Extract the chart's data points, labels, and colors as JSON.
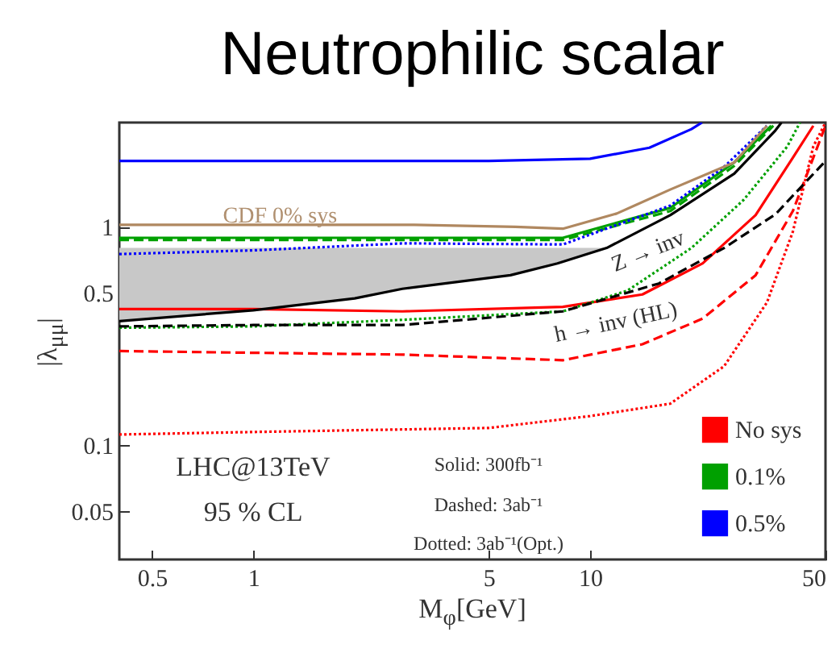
{
  "chart_data": {
    "type": "line",
    "title": "Neutrophilic scalar",
    "xlabel": "M$_{φ}$[GeV]",
    "ylabel": "|λ$_{μμ}$|",
    "log": "xy",
    "xlim": [
      0.4,
      50
    ],
    "ylim": [
      0.03,
      3
    ],
    "xticks": [
      0.5,
      1,
      5,
      10,
      50
    ],
    "yticks": [
      0.05,
      0.1,
      0.5,
      1
    ],
    "grid": false,
    "legend": "bottom right",
    "annotations": [
      "LHC@13TeV",
      "95 % CL",
      "Solid: 300fb⁻¹",
      "Dashed: 3ab⁻¹",
      "Dotted: 3ab⁻¹(Opt.)",
      {
        "text": "CDF 0% sys",
        "x": 1.2,
        "y": 1.12
      },
      "Z → inv",
      "h → inv (HL)"
    ],
    "series": [
      {
        "name": "No sys",
        "color": "#ff0000",
        "line_style": "solid",
        "x": [
          0.4,
          1,
          2.77,
          8.3,
          14.3,
          21.6,
          31,
          40,
          46
        ],
        "values": [
          0.42,
          0.42,
          0.41,
          0.43,
          0.49,
          0.68,
          1.13,
          2.07,
          2.9
        ]
      },
      {
        "color": "#ff0000",
        "line_style": "dashed",
        "x": [
          0.4,
          1,
          2.77,
          8.3,
          14.3,
          21.6,
          31,
          40,
          46,
          50
        ],
        "values": [
          0.27,
          0.265,
          0.26,
          0.245,
          0.29,
          0.38,
          0.6,
          1.18,
          2.07,
          2.9
        ]
      },
      {
        "color": "#ff0000",
        "line_style": "dotted",
        "x": [
          0.4,
          1,
          5,
          10,
          17.3,
          25,
          33.5,
          40,
          46,
          50
        ],
        "values": [
          0.112,
          0.115,
          0.12,
          0.136,
          0.155,
          0.23,
          0.45,
          0.95,
          2.33,
          3
        ]
      },
      {
        "name": "0.1%",
        "color": "#00a000",
        "line_style": "solid",
        "x": [
          0.4,
          1,
          3,
          8.3,
          17.3,
          26.8,
          34.5
        ],
        "values": [
          0.89,
          0.89,
          0.89,
          0.89,
          1.22,
          1.97,
          2.9
        ]
      },
      {
        "color": "#00a000",
        "line_style": "dashed",
        "x": [
          0.4,
          1,
          3,
          8.3,
          17.3,
          26.8,
          35
        ],
        "values": [
          0.87,
          0.87,
          0.87,
          0.87,
          1.18,
          1.9,
          2.9
        ]
      },
      {
        "color": "#00a000",
        "line_style": "dotted",
        "x": [
          0.4,
          1,
          2.77,
          8.3,
          12.9,
          20,
          28.6,
          38.5,
          42
        ],
        "values": [
          0.345,
          0.35,
          0.375,
          0.41,
          0.51,
          0.8,
          1.33,
          2.33,
          3
        ]
      },
      {
        "name": "0.5%",
        "color": "#0000ff",
        "line_style": "solid",
        "x": [
          0.4,
          1,
          5,
          10,
          15,
          20,
          21.5
        ],
        "values": [
          2.0,
          2.0,
          2.0,
          2.05,
          2.3,
          2.8,
          3
        ]
      },
      {
        "color": "#0000ff",
        "line_style": "dotted",
        "x": [
          0.4,
          1,
          2.8,
          8.3,
          17.3,
          24.9,
          33.5
        ],
        "values": [
          0.75,
          0.78,
          0.84,
          0.83,
          1.25,
          1.87,
          2.9
        ]
      },
      {
        "color": "#b08860",
        "line_style": "solid",
        "x": [
          0.4,
          1,
          3,
          6,
          8.3,
          12,
          17.3,
          26.8,
          33.5
        ],
        "values": [
          1.02,
          1.02,
          1.02,
          1.0,
          0.98,
          1.15,
          1.48,
          1.97,
          2.9
        ]
      },
      {
        "color": "#000000",
        "line_style": "solid",
        "x": [
          0.4,
          1,
          2,
          2.77,
          5.8,
          8,
          11.2,
          17.3,
          26.8,
          35.5,
          37
        ],
        "values": [
          0.37,
          0.415,
          0.47,
          0.52,
          0.6,
          0.68,
          0.8,
          1.13,
          1.75,
          2.76,
          3
        ],
        "lower": [
          0.37,
          0.415,
          0.47,
          0.52,
          0.6,
          0.68,
          0.8,
          null,
          null,
          null,
          null
        ],
        "upper": [
          0.8,
          0.8,
          0.8,
          0.8,
          0.8,
          0.8,
          0.8,
          null,
          null,
          null,
          null
        ]
      },
      {
        "color": "#000000",
        "line_style": "dashed",
        "x": [
          0.4,
          1,
          2.77,
          8.3,
          16,
          25,
          35.5,
          48,
          50
        ],
        "values": [
          0.35,
          0.355,
          0.355,
          0.41,
          0.55,
          0.8,
          1.14,
          1.87,
          2.0
        ]
      }
    ]
  }
}
